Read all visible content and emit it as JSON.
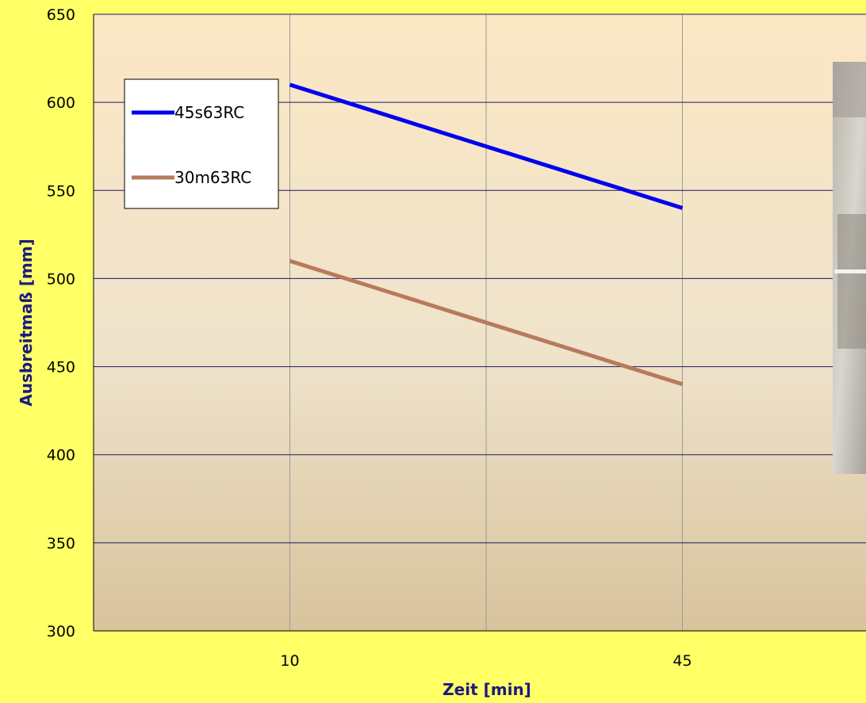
{
  "chart_data": {
    "type": "line",
    "xlabel": "Zeit [min]",
    "ylabel": "Ausbreitmaß [mm]",
    "categories": [
      "10",
      "45"
    ],
    "ylim": [
      300,
      650
    ],
    "yticks": [
      300,
      350,
      400,
      450,
      500,
      550,
      600,
      650
    ],
    "grid": true,
    "legend_position": "top-left",
    "series": [
      {
        "name": "45s63RC",
        "color": "#0000ee",
        "values": [
          610,
          540
        ]
      },
      {
        "name": "30m63RC",
        "color": "#b87a5c",
        "values": [
          510,
          440
        ]
      }
    ]
  }
}
